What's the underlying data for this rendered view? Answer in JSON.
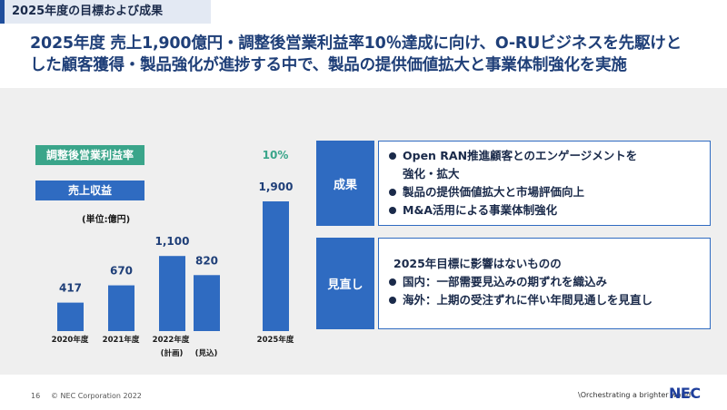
{
  "header": {
    "tab_title": "2025年度の目標および成果",
    "headline_line1": "2025年度 売上1,900億円・調整後営業利益率10％達成に向け、O-RUビジネスを先駆けと",
    "headline_line2": "した顧客獲得・製品強化が進捗する中で、製品の提供価値拡大と事業体制強化を実施"
  },
  "legend": {
    "margin_label": "調整後営業利益率",
    "revenue_label": "売上収益",
    "unit": "(単位:億円)"
  },
  "chart_data": {
    "type": "bar",
    "categories": [
      "2020年度",
      "2021年度",
      "2022年度 (計画)",
      "2022年度 (見込)",
      "2025年度"
    ],
    "values": [
      417,
      670,
      1100,
      820,
      1900
    ],
    "value_labels": [
      "417",
      "670",
      "1,100",
      "820",
      "1,900"
    ],
    "category_labels": {
      "c2020": "2020年度",
      "c2021": "2021年度",
      "c2022": "2022年度",
      "plan": "(計画)",
      "forecast": "(見込)",
      "c2025": "2025年度"
    },
    "margin_2025": "10%",
    "bar_color": "#2f6bc1",
    "margin_color": "#3aa58a"
  },
  "results": {
    "heading": "成果",
    "items": [
      "Open RAN推進顧客とのエンゲージメントを",
      "強化・拡大",
      "製品の提供価値拡大と市場評価向上",
      "M&A活用による事業体制強化"
    ]
  },
  "outlook": {
    "heading": "見直し",
    "lead": "2025年目標に影響はないものの",
    "items": [
      "国内：一部需要見込みの期ずれを織込み",
      "海外：上期の受注ずれに伴い年間見通しを見直し"
    ]
  },
  "footer": {
    "page": "16",
    "copyright": "© NEC Corporation 2022",
    "tagline": "\\Orchestrating a brighter world",
    "logo": "NEC"
  }
}
